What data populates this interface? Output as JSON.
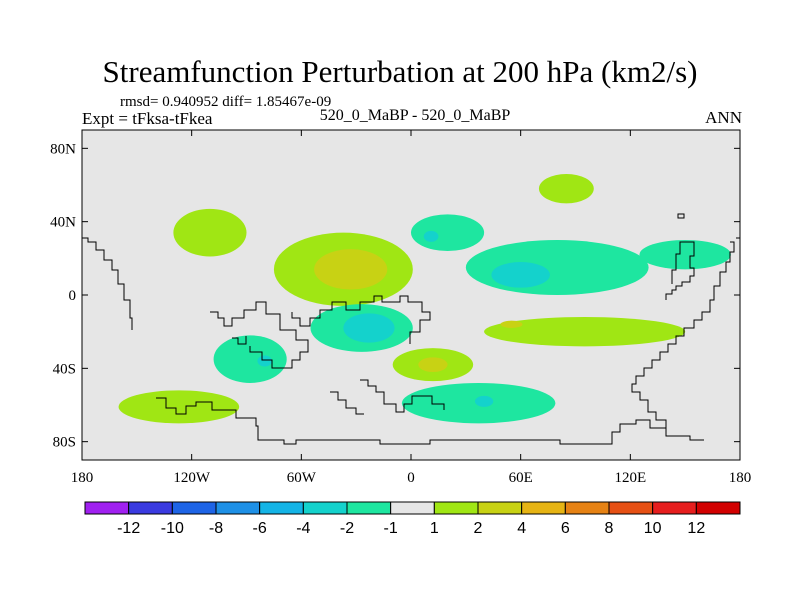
{
  "title": "Streamfunction Perturbation at 200 hPa (km2/s)",
  "stats_line": "rmsd= 0.940952 diff= 1.85467e-09",
  "expt_line": "Expt = tFksa-tFkea",
  "cases_line": "520_0_MaBP - 520_0_MaBP",
  "season": "ANN",
  "chart_data": {
    "type": "contour-map",
    "projection": "cylindrical equidistant",
    "xlim": [
      -180,
      180
    ],
    "ylim": [
      -90,
      90
    ],
    "x_ticks": [
      {
        "value": -180,
        "label": "180"
      },
      {
        "value": -120,
        "label": "120W"
      },
      {
        "value": -60,
        "label": "60W"
      },
      {
        "value": 0,
        "label": "0"
      },
      {
        "value": 60,
        "label": "60E"
      },
      {
        "value": 120,
        "label": "120E"
      },
      {
        "value": 180,
        "label": "180"
      }
    ],
    "y_ticks": [
      {
        "value": 80,
        "label": "80N"
      },
      {
        "value": 40,
        "label": "40N"
      },
      {
        "value": 0,
        "label": "0"
      },
      {
        "value": -40,
        "label": "40S"
      },
      {
        "value": -80,
        "label": "80S"
      }
    ],
    "colorbar": {
      "labels": [
        "-12",
        "-10",
        "-8",
        "-6",
        "-4",
        "-2",
        "-1",
        "1",
        "2",
        "4",
        "6",
        "8",
        "10",
        "12"
      ],
      "colors": [
        "#a020f0",
        "#3a3ae0",
        "#1e64e6",
        "#1e90e6",
        "#14b4e6",
        "#14d2cc",
        "#1ee6a0",
        "#e6e6e6",
        "#a0e614",
        "#c8d214",
        "#e6b414",
        "#e68214",
        "#e65014",
        "#e61e1e",
        "#d20000"
      ]
    },
    "regions": [
      {
        "name": "positive-north-america",
        "level": "1 to 2",
        "color_index": 8,
        "lon": -110,
        "lat": 34,
        "rx": 20,
        "ry": 13
      },
      {
        "name": "positive-atlantic-large",
        "level": "1 to 2",
        "color_index": 8,
        "lon": -37,
        "lat": 14,
        "rx": 38,
        "ry": 20
      },
      {
        "name": "positive-atlantic-core",
        "level": "2 to 4",
        "color_index": 9,
        "lon": -33,
        "lat": 14,
        "rx": 20,
        "ry": 11
      },
      {
        "name": "negative-north-africa",
        "level": "-1 to -2",
        "color_index": 6,
        "lon": 20,
        "lat": 34,
        "rx": 20,
        "ry": 10
      },
      {
        "name": "negative-asia",
        "level": "-1 to -2",
        "color_index": 6,
        "lon": 80,
        "lat": 15,
        "rx": 50,
        "ry": 15
      },
      {
        "name": "negative-asia-east",
        "level": "-1 to -2",
        "color_index": 6,
        "lon": 150,
        "lat": 22,
        "rx": 25,
        "ry": 8
      },
      {
        "name": "negative-asia-core",
        "level": "-2 to -4",
        "color_index": 5,
        "lon": 60,
        "lat": 11,
        "rx": 16,
        "ry": 7
      },
      {
        "name": "negative-africa-core",
        "level": "-2 to -4",
        "color_index": 5,
        "lon": 11,
        "lat": 32,
        "rx": 4,
        "ry": 3
      },
      {
        "name": "positive-siberia",
        "level": "1 to 2",
        "color_index": 8,
        "lon": 85,
        "lat": 58,
        "rx": 15,
        "ry": 8
      },
      {
        "name": "negative-south-atlantic",
        "level": "-1 to -2",
        "color_index": 6,
        "lon": -27,
        "lat": -18,
        "rx": 28,
        "ry": 13
      },
      {
        "name": "negative-south-atlantic-core",
        "level": "-2 to -4",
        "color_index": 5,
        "lon": -23,
        "lat": -18,
        "rx": 14,
        "ry": 8
      },
      {
        "name": "positive-indian-ocean",
        "level": "1 to 2",
        "color_index": 8,
        "lon": 95,
        "lat": -20,
        "rx": 55,
        "ry": 8
      },
      {
        "name": "positive-indian-core",
        "level": "2 to 4",
        "color_index": 9,
        "lon": 55,
        "lat": -16,
        "rx": 6,
        "ry": 2
      },
      {
        "name": "negative-south-pacific",
        "level": "-1 to -2",
        "color_index": 6,
        "lon": -88,
        "lat": -35,
        "rx": 20,
        "ry": 13
      },
      {
        "name": "negative-south-pacific-core",
        "level": "-2 to -4",
        "color_index": 5,
        "lon": -80,
        "lat": -36,
        "rx": 4,
        "ry": 3
      },
      {
        "name": "positive-south-africa",
        "level": "1 to 2",
        "color_index": 8,
        "lon": 12,
        "lat": -38,
        "rx": 22,
        "ry": 9
      },
      {
        "name": "positive-south-africa-core",
        "level": "2 to 4",
        "color_index": 9,
        "lon": 12,
        "lat": -38,
        "rx": 8,
        "ry": 4
      },
      {
        "name": "positive-southeast-pacific",
        "level": "1 to 2",
        "color_index": 8,
        "lon": -127,
        "lat": -61,
        "rx": 33,
        "ry": 9
      },
      {
        "name": "negative-southern-ocean",
        "level": "-1 to -2",
        "color_index": 6,
        "lon": 37,
        "lat": -59,
        "rx": 42,
        "ry": 11
      },
      {
        "name": "negative-southern-ocean-core",
        "level": "-2 to -4",
        "color_index": 5,
        "lon": 40,
        "lat": -58,
        "rx": 5,
        "ry": 3
      }
    ]
  }
}
